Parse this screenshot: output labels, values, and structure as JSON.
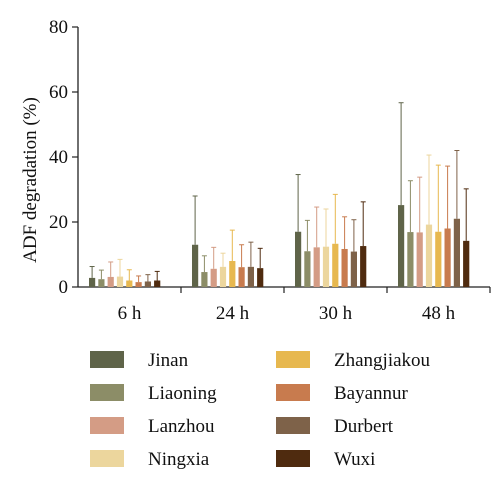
{
  "chart_data": {
    "type": "bar",
    "title": "",
    "xlabel": "",
    "ylabel": "ADF degradation (%)",
    "ylim": [
      0,
      80
    ],
    "yticks": [
      "0",
      "20",
      "40",
      "60",
      "80"
    ],
    "categories": [
      "6 h",
      "24 h",
      "30 h",
      "48 h"
    ],
    "grid": false,
    "error_bars": true,
    "legend": {
      "placement": "bottom",
      "columns": 2
    },
    "series": [
      {
        "name": "Jinan",
        "color": "#5f6449",
        "values": [
          2.8,
          13.0,
          17.0,
          25.2
        ],
        "errors": [
          3.5,
          15.0,
          17.6,
          31.5
        ]
      },
      {
        "name": "Liaoning",
        "color": "#8c8d67",
        "values": [
          2.4,
          4.6,
          11.0,
          16.9
        ],
        "errors": [
          2.8,
          5.0,
          9.5,
          15.8
        ]
      },
      {
        "name": "Lanzhou",
        "color": "#d49c85",
        "values": [
          3.1,
          5.6,
          12.2,
          16.8
        ],
        "errors": [
          4.6,
          6.6,
          12.4,
          17.0
        ]
      },
      {
        "name": "Ningxia",
        "color": "#ecd69d",
        "values": [
          3.2,
          6.2,
          12.4,
          19.2
        ],
        "errors": [
          5.3,
          4.2,
          11.6,
          21.4
        ]
      },
      {
        "name": "Zhangjiakou",
        "color": "#e7b84f",
        "values": [
          2.0,
          8.0,
          13.3,
          17.0
        ],
        "errors": [
          3.3,
          9.5,
          15.2,
          20.5
        ]
      },
      {
        "name": "Bayannur",
        "color": "#c87b4e",
        "values": [
          1.5,
          6.1,
          11.7,
          18.0
        ],
        "errors": [
          1.9,
          6.9,
          9.9,
          19.2
        ]
      },
      {
        "name": "Durbert",
        "color": "#7e6249",
        "values": [
          1.7,
          6.2,
          10.9,
          21.0
        ],
        "errors": [
          2.1,
          7.6,
          9.8,
          21.0
        ]
      },
      {
        "name": "Wuxi",
        "color": "#4f2b0f",
        "values": [
          2.0,
          5.8,
          12.6,
          14.2
        ],
        "errors": [
          2.8,
          6.1,
          13.6,
          16.0
        ]
      }
    ]
  }
}
